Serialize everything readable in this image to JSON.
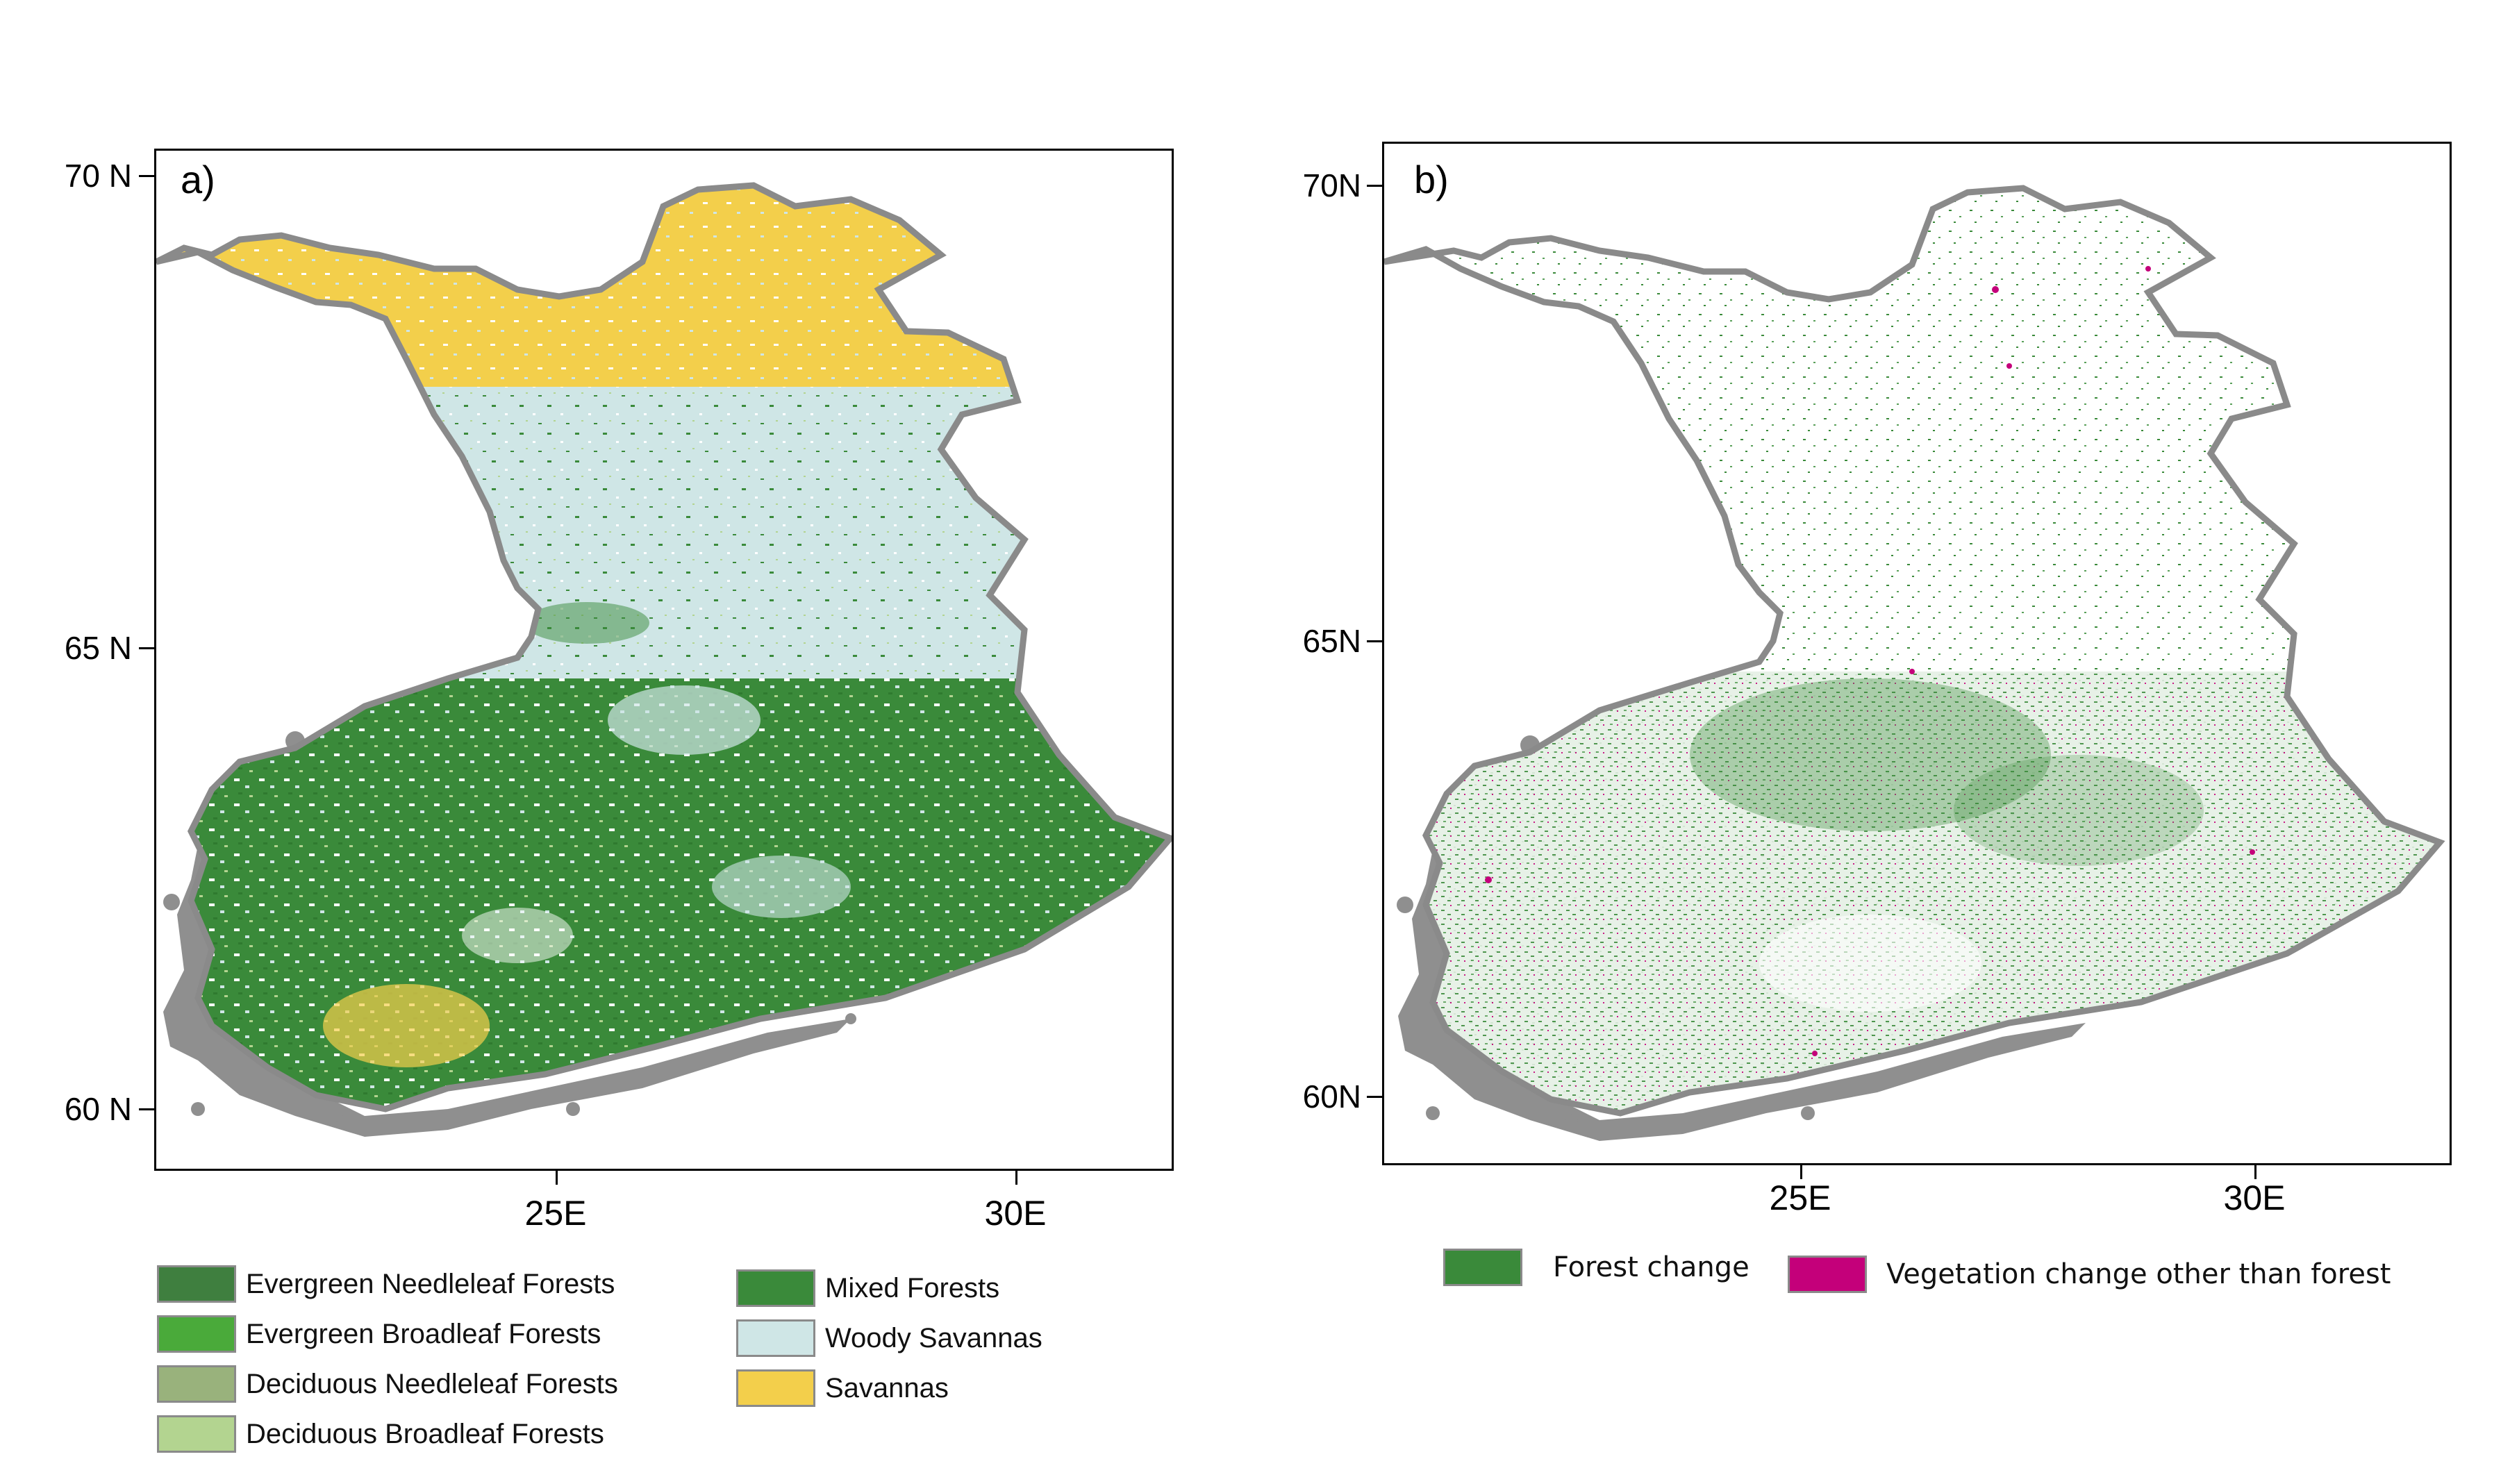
{
  "panel_a": {
    "tag": "a)",
    "yticks": [
      "70 N",
      "65 N",
      "60 N"
    ],
    "xticks": [
      "25E",
      "30E"
    ],
    "legend": [
      {
        "label": "Evergreen Needleleaf Forests",
        "color": "#3f7f3f"
      },
      {
        "label": "Evergreen Broadleaf Forests",
        "color": "#4aaa3a"
      },
      {
        "label": "Deciduous Needleleaf Forests",
        "color": "#99b27c"
      },
      {
        "label": "Deciduous Broadleaf Forests",
        "color": "#b3d490"
      },
      {
        "label": "Mixed Forests",
        "color": "#3a8a3a"
      },
      {
        "label": "Woody Savannas",
        "color": "#cfe6e6"
      },
      {
        "label": "Savannas",
        "color": "#f3cf4b"
      }
    ]
  },
  "panel_b": {
    "tag": "b)",
    "yticks": [
      "70N",
      "65N",
      "60N"
    ],
    "xticks": [
      "25E",
      "30E"
    ],
    "legend": [
      {
        "label": "Forest change",
        "color": "#3a8a3a"
      },
      {
        "label": "Vegetation change other than forest",
        "color": "#c4007a"
      }
    ]
  },
  "colors": {
    "boundary": "#8a8a8a",
    "archipelago": "#8f8f8f",
    "frame": "#000000"
  }
}
